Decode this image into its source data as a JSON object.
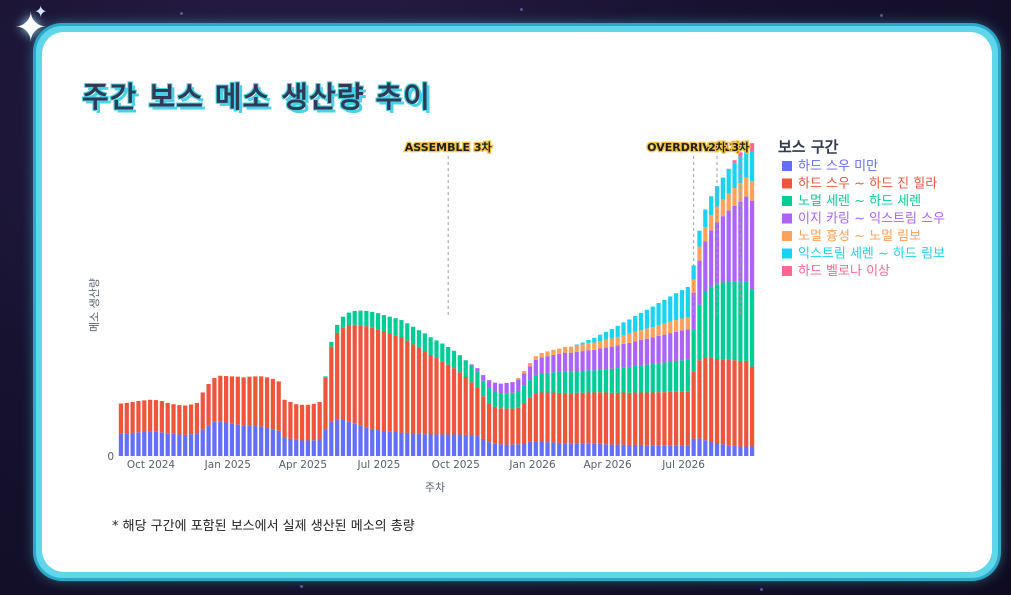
{
  "title": "주간 보스 메소 생산량 추이",
  "footnote": "* 해당 구간에 포함된 보스에서 실제 생산된 메소의 총량",
  "chart_data": {
    "type": "bar",
    "stacked": true,
    "title": "주간 보스 메소 생산량 추이",
    "xlabel": "주차",
    "ylabel": "메소 생산량",
    "x_start": "2024-08-26",
    "x_step_days": 7,
    "x_ticks": [
      {
        "date": "2024-10-01",
        "label": "Oct 2024"
      },
      {
        "date": "2025-01-01",
        "label": "Jan 2025"
      },
      {
        "date": "2025-04-01",
        "label": "Apr 2025"
      },
      {
        "date": "2025-07-01",
        "label": "Jul 2025"
      },
      {
        "date": "2025-10-01",
        "label": "Oct 2025"
      },
      {
        "date": "2026-01-01",
        "label": "Jan 2026"
      },
      {
        "date": "2026-04-01",
        "label": "Apr 2026"
      },
      {
        "date": "2026-07-01",
        "label": "Jul 2026"
      }
    ],
    "y_tick_zero": "0",
    "ymax": 100,
    "grid": false,
    "legend_title": "보스 구간",
    "legend_position": "right",
    "events": [
      {
        "week": 56,
        "label": "ASSEMBLE 3차"
      },
      {
        "week": 98,
        "label": "OVERDRIVE 1차"
      },
      {
        "week": 102,
        "label": "2차"
      },
      {
        "week": 106,
        "label": "3차"
      }
    ],
    "series": [
      {
        "name": "하드 스우 미만",
        "color": "#636efa",
        "values": [
          7.0,
          7.2,
          7.3,
          7.5,
          7.6,
          7.8,
          7.7,
          7.5,
          7.2,
          7.0,
          6.8,
          6.7,
          6.9,
          7.2,
          8.5,
          9.7,
          10.8,
          11.0,
          10.6,
          10.2,
          9.9,
          9.6,
          9.6,
          9.5,
          9.3,
          9.0,
          8.5,
          8.0,
          5.7,
          5.4,
          5.1,
          4.9,
          4.9,
          5.0,
          5.2,
          8.5,
          10.8,
          11.6,
          11.4,
          10.8,
          10.2,
          9.6,
          9.1,
          8.6,
          8.2,
          7.9,
          7.7,
          7.6,
          7.4,
          7.3,
          7.1,
          7.0,
          6.9,
          6.8,
          6.8,
          6.8,
          6.8,
          6.8,
          6.8,
          6.7,
          6.5,
          6.3,
          5.4,
          4.4,
          3.9,
          3.7,
          3.6,
          3.6,
          3.7,
          4.1,
          4.5,
          4.7,
          4.6,
          4.4,
          4.3,
          4.1,
          4.0,
          3.9,
          3.9,
          3.9,
          3.9,
          3.9,
          3.9,
          3.7,
          3.6,
          3.6,
          3.6,
          3.5,
          3.5,
          3.5,
          3.4,
          3.4,
          3.4,
          3.4,
          3.4,
          3.4,
          3.4,
          3.4,
          5.5,
          5.5,
          5.0,
          4.6,
          4.1,
          3.7,
          3.4,
          3.2,
          3.0,
          3.0,
          3.0
        ]
      },
      {
        "name": "하드 스우 ~ 하드 진 힐라",
        "color": "#ef553b",
        "values": [
          9.6,
          9.6,
          9.8,
          9.9,
          10.0,
          10.0,
          10.0,
          9.9,
          9.6,
          9.4,
          9.3,
          9.3,
          9.4,
          9.6,
          11.6,
          13.1,
          13.9,
          14.4,
          14.7,
          15.0,
          15.2,
          15.3,
          15.5,
          15.7,
          15.9,
          15.9,
          15.9,
          15.6,
          12.1,
          11.7,
          11.3,
          11.3,
          11.3,
          11.5,
          11.9,
          16.2,
          23.8,
          27.4,
          29.2,
          30.5,
          31.3,
          31.8,
          32.0,
          32.0,
          31.9,
          31.5,
          31.1,
          30.6,
          30.1,
          29.2,
          28.2,
          27.2,
          26.3,
          25.2,
          24.2,
          23.2,
          22.1,
          21.0,
          19.7,
          18.3,
          16.8,
          15.5,
          13.5,
          12.3,
          11.7,
          11.4,
          11.4,
          11.4,
          11.7,
          12.7,
          13.9,
          15.1,
          15.5,
          15.7,
          15.8,
          15.9,
          16.0,
          16.0,
          16.1,
          16.1,
          16.2,
          16.2,
          16.3,
          16.4,
          16.4,
          16.4,
          16.5,
          16.5,
          16.6,
          16.6,
          16.7,
          16.7,
          16.8,
          16.8,
          16.9,
          16.9,
          16.9,
          16.9,
          21.2,
          24.8,
          26.2,
          26.4,
          26.6,
          26.8,
          27.0,
          27.1,
          27.1,
          27.1,
          25.3
        ]
      },
      {
        "name": "노멀 세렌 ~ 하드 세렌",
        "color": "#00cc96",
        "values": [
          0,
          0,
          0,
          0,
          0,
          0,
          0,
          0,
          0,
          0,
          0,
          0,
          0,
          0,
          0,
          0,
          0,
          0,
          0,
          0,
          0,
          0,
          0,
          0,
          0,
          0,
          0,
          0,
          0,
          0,
          0,
          0,
          0,
          0,
          0,
          0.5,
          1.5,
          2.5,
          3.5,
          4.1,
          4.4,
          4.6,
          4.8,
          5.0,
          5.1,
          5.2,
          5.3,
          5.4,
          5.5,
          5.5,
          5.6,
          5.6,
          5.6,
          5.6,
          5.6,
          5.6,
          5.6,
          5.5,
          5.4,
          5.3,
          5.2,
          5.0,
          4.9,
          4.8,
          4.8,
          4.8,
          4.9,
          5.0,
          5.2,
          5.4,
          5.6,
          5.8,
          6.0,
          6.2,
          6.4,
          6.6,
          6.8,
          6.8,
          6.9,
          6.9,
          7.0,
          7.0,
          7.2,
          7.4,
          7.6,
          7.8,
          8.0,
          8.2,
          8.4,
          8.6,
          8.8,
          9.0,
          9.2,
          9.4,
          9.6,
          9.8,
          10.0,
          10.2,
          13.5,
          17.6,
          20.7,
          22.6,
          23.7,
          24.4,
          24.8,
          24.9,
          25.0,
          25.0,
          24.5
        ]
      },
      {
        "name": "이지 카링 ~ 익스트림 스우",
        "color": "#ab63fa",
        "values": [
          0,
          0,
          0,
          0,
          0,
          0,
          0,
          0,
          0,
          0,
          0,
          0,
          0,
          0,
          0,
          0,
          0,
          0,
          0,
          0,
          0,
          0,
          0,
          0,
          0,
          0,
          0,
          0,
          0,
          0,
          0,
          0,
          0,
          0,
          0,
          0,
          0,
          0,
          0,
          0,
          0,
          0,
          0,
          0,
          0,
          0,
          0,
          0,
          0,
          0,
          0,
          0,
          0,
          0,
          0,
          0,
          0,
          0,
          0,
          0,
          0.5,
          1.0,
          1.8,
          2.5,
          2.8,
          3.0,
          3.2,
          3.4,
          3.6,
          3.9,
          4.4,
          4.8,
          5.1,
          5.3,
          5.5,
          5.7,
          5.9,
          6.0,
          6.1,
          6.3,
          6.4,
          6.5,
          6.6,
          6.8,
          7.0,
          7.2,
          7.4,
          7.6,
          7.8,
          8.0,
          8.2,
          8.4,
          8.6,
          8.8,
          9.0,
          9.2,
          9.4,
          9.6,
          11.5,
          14.0,
          16.0,
          17.8,
          19.5,
          21.0,
          22.5,
          24.0,
          25.4,
          27.0,
          28.0
        ]
      },
      {
        "name": "노멀 흉성 ~ 노멀 림보",
        "color": "#ffa15a",
        "values": [
          0,
          0,
          0,
          0,
          0,
          0,
          0,
          0,
          0,
          0,
          0,
          0,
          0,
          0,
          0,
          0,
          0,
          0,
          0,
          0,
          0,
          0,
          0,
          0,
          0,
          0,
          0,
          0,
          0,
          0,
          0,
          0,
          0,
          0,
          0,
          0,
          0,
          0,
          0,
          0,
          0,
          0,
          0,
          0,
          0,
          0,
          0,
          0,
          0,
          0,
          0,
          0,
          0,
          0,
          0,
          0,
          0,
          0,
          0,
          0,
          0,
          0,
          0,
          0,
          0,
          0,
          0,
          0,
          0.5,
          0.8,
          1.0,
          1.2,
          1.4,
          1.5,
          1.6,
          1.7,
          1.8,
          1.9,
          2.0,
          2.1,
          2.2,
          2.3,
          2.4,
          2.5,
          2.6,
          2.7,
          2.8,
          2.9,
          3.0,
          3.1,
          3.2,
          3.3,
          3.4,
          3.5,
          3.6,
          3.7,
          3.8,
          3.9,
          4.1,
          4.4,
          4.6,
          4.8,
          5.0,
          5.2,
          5.4,
          5.6,
          5.8,
          6.0,
          6.2
        ]
      },
      {
        "name": "익스트림 세렌 ~ 하드 림보",
        "color": "#19d3f3",
        "values": [
          0,
          0,
          0,
          0,
          0,
          0,
          0,
          0,
          0,
          0,
          0,
          0,
          0,
          0,
          0,
          0,
          0,
          0,
          0,
          0,
          0,
          0,
          0,
          0,
          0,
          0,
          0,
          0,
          0,
          0,
          0,
          0,
          0,
          0,
          0,
          0,
          0,
          0,
          0,
          0,
          0,
          0,
          0,
          0,
          0,
          0,
          0,
          0,
          0,
          0,
          0,
          0,
          0,
          0,
          0,
          0,
          0,
          0,
          0,
          0,
          0,
          0,
          0,
          0,
          0,
          0,
          0,
          0,
          0,
          0,
          0,
          0,
          0,
          0,
          0,
          0,
          0,
          0,
          0.3,
          0.6,
          1.0,
          1.5,
          2.0,
          2.5,
          3.0,
          3.5,
          4.0,
          4.5,
          5.0,
          5.5,
          6.0,
          6.5,
          7.0,
          7.5,
          8.0,
          8.5,
          9.0,
          9.5,
          4.5,
          5.0,
          5.5,
          6.0,
          6.5,
          7.0,
          7.5,
          8.0,
          8.5,
          9.0,
          9.5
        ]
      },
      {
        "name": "하드 벨로나 이상",
        "color": "#ff6692",
        "values": [
          0,
          0,
          0,
          0,
          0,
          0,
          0,
          0,
          0,
          0,
          0,
          0,
          0,
          0,
          0,
          0,
          0,
          0,
          0,
          0,
          0,
          0,
          0,
          0,
          0,
          0,
          0,
          0,
          0,
          0,
          0,
          0,
          0,
          0,
          0,
          0,
          0,
          0,
          0,
          0,
          0,
          0,
          0,
          0,
          0,
          0,
          0,
          0,
          0,
          0,
          0,
          0,
          0,
          0,
          0,
          0,
          0,
          0,
          0,
          0,
          0,
          0,
          0,
          0,
          0,
          0,
          0,
          0,
          0,
          0,
          0,
          0,
          0,
          0,
          0,
          0,
          0,
          0,
          0,
          0,
          0,
          0,
          0,
          0,
          0,
          0,
          0,
          0,
          0,
          0,
          0,
          0,
          0,
          0,
          0,
          0,
          0,
          0,
          0,
          0,
          0,
          0,
          0,
          0,
          0.3,
          0.8,
          1.3,
          1.8,
          2.5
        ]
      }
    ]
  }
}
